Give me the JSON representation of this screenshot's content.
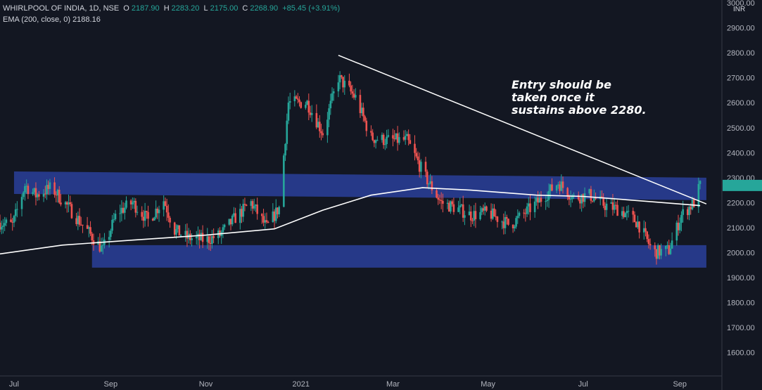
{
  "header": {
    "symbol": "WHIRLPOOL OF INDIA, 1D, NSE",
    "open_label": "O",
    "open": "2187.90",
    "high_label": "H",
    "high": "2283.20",
    "low_label": "L",
    "low": "2175.00",
    "close_label": "C",
    "close": "2268.90",
    "change": "+85.45 (+3.91%)",
    "ema_label": "EMA (200, close, 0)",
    "ema_value": "2188.16"
  },
  "annotation": "Entry should be\ntaken once it\nsustains above 2280.",
  "colors": {
    "background": "#131722",
    "up": "#26a69a",
    "down": "#ef5350",
    "band": "#2a3f9a",
    "ema": "#ffffff",
    "trendline": "#ffffff"
  },
  "chart_data": {
    "type": "candlestick",
    "currency": "INR",
    "ylim": [
      1500,
      3000
    ],
    "y_ticks": [
      3000,
      2900,
      2800,
      2700,
      2600,
      2500,
      2400,
      2300,
      2200,
      2100,
      2000,
      1900,
      1800,
      1700,
      1600
    ],
    "y_tick_labels": [
      "3000.00",
      "2900.00",
      "2800.00",
      "2700.00",
      "2600.00",
      "2500.00",
      "2400.00",
      "2300.00",
      "2200.00",
      "2100.00",
      "2000.00",
      "1900.00",
      "1800.00",
      "1700.00",
      "1600.00"
    ],
    "x_start": "2020-06-22",
    "x_end": "2021-09-23",
    "x_ticks": [
      "2020-07-01",
      "2020-09-01",
      "2020-11-01",
      "2021-01-01",
      "2021-03-01",
      "2021-05-01",
      "2021-07-01",
      "2021-09-01"
    ],
    "x_tick_labels": [
      "Jul",
      "Sep",
      "Nov",
      "2021",
      "Mar",
      "May",
      "Jul",
      "Sep"
    ],
    "price_path": [
      [
        "2020-06-22",
        2120
      ],
      [
        "2020-06-30",
        2110
      ],
      [
        "2020-07-08",
        2270
      ],
      [
        "2020-07-15",
        2230
      ],
      [
        "2020-07-25",
        2260
      ],
      [
        "2020-08-05",
        2180
      ],
      [
        "2020-08-18",
        2080
      ],
      [
        "2020-08-27",
        2010
      ],
      [
        "2020-09-05",
        2160
      ],
      [
        "2020-09-15",
        2200
      ],
      [
        "2020-09-25",
        2130
      ],
      [
        "2020-10-05",
        2210
      ],
      [
        "2020-10-12",
        2090
      ],
      [
        "2020-10-20",
        2060
      ],
      [
        "2020-11-01",
        2050
      ],
      [
        "2020-11-10",
        2070
      ],
      [
        "2020-11-20",
        2140
      ],
      [
        "2020-11-30",
        2200
      ],
      [
        "2020-12-10",
        2100
      ],
      [
        "2020-12-18",
        2180
      ],
      [
        "2020-12-24",
        2600
      ],
      [
        "2021-01-05",
        2600
      ],
      [
        "2021-01-15",
        2480
      ],
      [
        "2021-01-25",
        2700
      ],
      [
        "2021-02-05",
        2620
      ],
      [
        "2021-02-15",
        2460
      ],
      [
        "2021-02-25",
        2450
      ],
      [
        "2021-03-10",
        2450
      ],
      [
        "2021-03-22",
        2300
      ],
      [
        "2021-04-01",
        2200
      ],
      [
        "2021-04-10",
        2180
      ],
      [
        "2021-04-20",
        2150
      ],
      [
        "2021-05-01",
        2160
      ],
      [
        "2021-05-15",
        2110
      ],
      [
        "2021-05-25",
        2160
      ],
      [
        "2021-06-05",
        2220
      ],
      [
        "2021-06-15",
        2280
      ],
      [
        "2021-06-25",
        2220
      ],
      [
        "2021-07-05",
        2230
      ],
      [
        "2021-07-15",
        2190
      ],
      [
        "2021-07-25",
        2170
      ],
      [
        "2021-08-05",
        2120
      ],
      [
        "2021-08-15",
        2000
      ],
      [
        "2021-08-25",
        2010
      ],
      [
        "2021-09-02",
        2150
      ],
      [
        "2021-09-10",
        2200
      ],
      [
        "2021-09-14",
        2268.9
      ]
    ],
    "ema200": {
      "name": "EMA (200, close, 0)",
      "points": [
        [
          "2020-06-22",
          1995
        ],
        [
          "2020-08-01",
          2030
        ],
        [
          "2020-09-15",
          2050
        ],
        [
          "2020-11-01",
          2070
        ],
        [
          "2020-12-15",
          2095
        ],
        [
          "2021-01-15",
          2170
        ],
        [
          "2021-02-15",
          2230
        ],
        [
          "2021-03-20",
          2260
        ],
        [
          "2021-04-20",
          2250
        ],
        [
          "2021-06-01",
          2230
        ],
        [
          "2021-07-01",
          2225
        ],
        [
          "2021-08-01",
          2210
        ],
        [
          "2021-09-14",
          2188.16
        ]
      ]
    },
    "trendline": [
      [
        "2021-01-25",
        2790
      ],
      [
        "2021-09-18",
        2195
      ]
    ],
    "zones": [
      {
        "from": [
          "2020-07-01",
          2280
        ],
        "to": [
          "2021-09-18",
          2255
        ],
        "half_height": 16
      },
      {
        "from": [
          "2020-08-20",
          1985
        ],
        "to": [
          "2021-09-18",
          1985
        ],
        "half_height": 16
      }
    ],
    "grid": false
  }
}
